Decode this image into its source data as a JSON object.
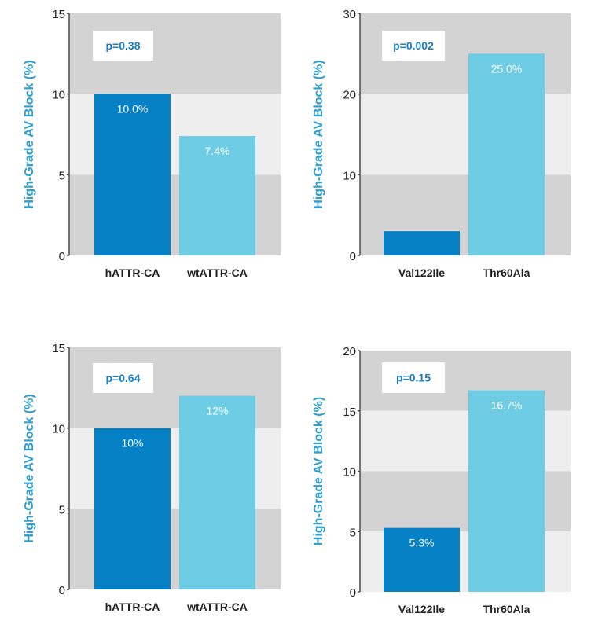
{
  "colors": {
    "dark_bar": "#0680c4",
    "light_bar": "#6ecde4",
    "band_dark": "#d3d3d4",
    "band_light": "#eeeeef",
    "ylabel_color": "#2c9fd0",
    "pvalue_color": "#1a7fc2",
    "text": "#222222"
  },
  "chart_data": [
    {
      "type": "bar",
      "ylabel": "High-Grade AV Block (%)",
      "ylim": [
        0,
        15
      ],
      "yticks": [
        0,
        5,
        10,
        15
      ],
      "categories": [
        "hATTR-CA",
        "wtATTR-CA"
      ],
      "values": [
        10.0,
        7.4
      ],
      "value_labels": [
        "10.0%",
        "7.4%"
      ],
      "annotation": "p=0.38",
      "grid": false
    },
    {
      "type": "bar",
      "ylabel": "High-Grade AV Block (%)",
      "ylim": [
        0,
        30
      ],
      "yticks": [
        0,
        10,
        20,
        30
      ],
      "categories": [
        "Val122Ile",
        "Thr60Ala"
      ],
      "values": [
        3.0,
        25.0
      ],
      "value_labels": [
        "",
        "25.0%"
      ],
      "annotation": "p=0.002",
      "grid": false
    },
    {
      "type": "bar",
      "ylabel": "High-Grade AV Block (%)",
      "ylim": [
        0,
        15
      ],
      "yticks": [
        0,
        5,
        10,
        15
      ],
      "categories": [
        "hATTR-CA",
        "wtATTR-CA"
      ],
      "values": [
        10,
        12
      ],
      "value_labels": [
        "10%",
        "12%"
      ],
      "annotation": "p=0.64",
      "grid": false
    },
    {
      "type": "bar",
      "ylabel": "High-Grade AV Block (%)",
      "ylim": [
        0,
        20
      ],
      "yticks": [
        0,
        5,
        10,
        15,
        20
      ],
      "categories": [
        "Val122Ile",
        "Thr60Ala"
      ],
      "values": [
        5.3,
        16.7
      ],
      "value_labels": [
        "5.3%",
        "16.7%"
      ],
      "annotation": "p=0.15",
      "grid": false
    }
  ]
}
